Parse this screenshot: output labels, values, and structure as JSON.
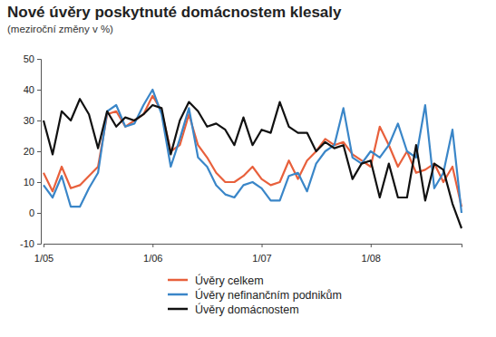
{
  "chart_data": {
    "type": "line",
    "title": "Nové úvěry poskytnuté domácnostem klesaly",
    "subtitle": "(meziroční změny v %)",
    "categories": [
      "1/05",
      null,
      null,
      null,
      null,
      null,
      null,
      null,
      null,
      null,
      null,
      null,
      "1/06",
      null,
      null,
      null,
      null,
      null,
      null,
      null,
      null,
      null,
      null,
      null,
      "1/07",
      null,
      null,
      null,
      null,
      null,
      null,
      null,
      null,
      null,
      null,
      null,
      "1/08",
      null,
      null,
      null,
      null,
      null,
      null,
      null,
      null,
      null,
      null
    ],
    "series": [
      {
        "name": "Úvěry celkem",
        "color": "#e8603c",
        "values": [
          13,
          7,
          15,
          8,
          9,
          12,
          15,
          32,
          33,
          28,
          30,
          32,
          38,
          33,
          20,
          22,
          32,
          22,
          18,
          13,
          10,
          10,
          12,
          15,
          11,
          9,
          10,
          17,
          11,
          17,
          20,
          24,
          22,
          23,
          19,
          17,
          15,
          28,
          22,
          15,
          20,
          13,
          14,
          16,
          10,
          15,
          2
        ]
      },
      {
        "name": "Úvěry nefinančním podnikům",
        "color": "#3a86c8",
        "values": [
          9,
          5,
          12,
          2,
          2,
          8,
          13,
          33,
          35,
          28,
          29,
          35,
          40,
          32,
          15,
          24,
          34,
          18,
          15,
          9,
          6,
          5,
          9,
          10,
          8,
          4,
          4,
          12,
          13,
          7,
          16,
          20,
          22,
          34,
          18,
          16,
          20,
          18,
          22,
          29,
          20,
          18,
          35,
          8,
          13,
          27,
          0
        ]
      },
      {
        "name": "Úvěry domácnostem",
        "color": "#111111",
        "values": [
          30,
          19,
          33,
          30,
          37,
          32,
          21,
          33,
          28,
          31,
          30,
          32,
          35,
          34,
          19,
          30,
          36,
          33,
          28,
          29,
          27,
          22,
          31,
          22,
          27,
          26,
          36,
          28,
          26,
          26,
          20,
          23,
          21,
          22,
          11,
          16,
          17,
          5,
          16,
          5,
          5,
          22,
          4,
          16,
          14,
          3,
          -5
        ]
      }
    ],
    "ylim": [
      -10,
      50
    ],
    "yticks": [
      -10,
      0,
      10,
      20,
      30,
      40,
      50
    ],
    "grid": false,
    "legend": "bottom"
  }
}
